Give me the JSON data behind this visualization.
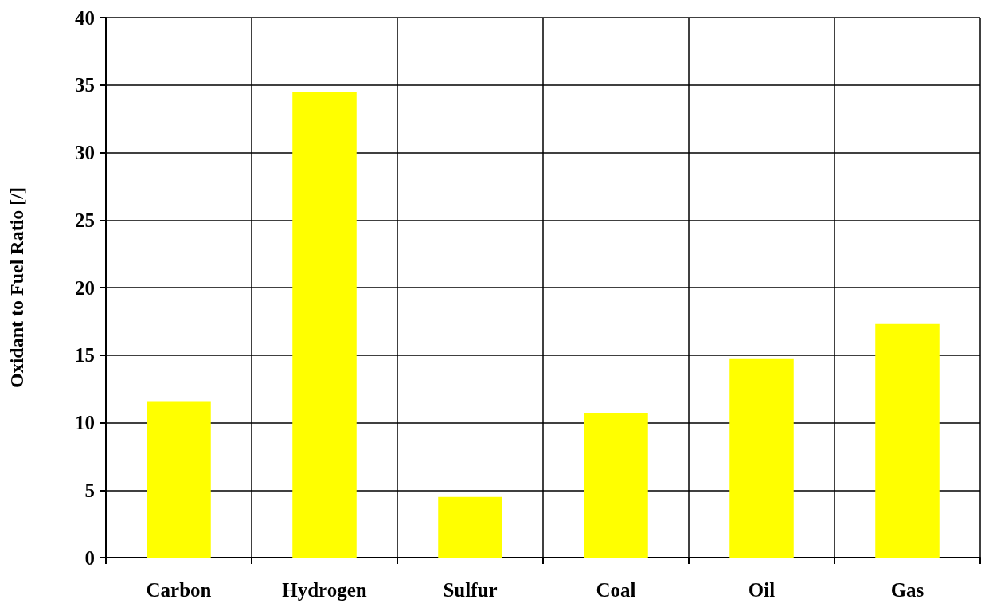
{
  "chart_data": {
    "type": "bar",
    "ylabel": "Oxidant to Fuel Ratio [/]",
    "categories": [
      "Carbon",
      "Hydrogen",
      "Sulfur",
      "Coal",
      "Oil",
      "Gas"
    ],
    "values": [
      11.6,
      34.5,
      4.5,
      10.7,
      14.7,
      17.3
    ],
    "color": "#ffff00",
    "ylim": [
      0,
      40
    ],
    "yticks": [
      0,
      5,
      10,
      15,
      20,
      25,
      30,
      35,
      40
    ],
    "grid": true
  }
}
